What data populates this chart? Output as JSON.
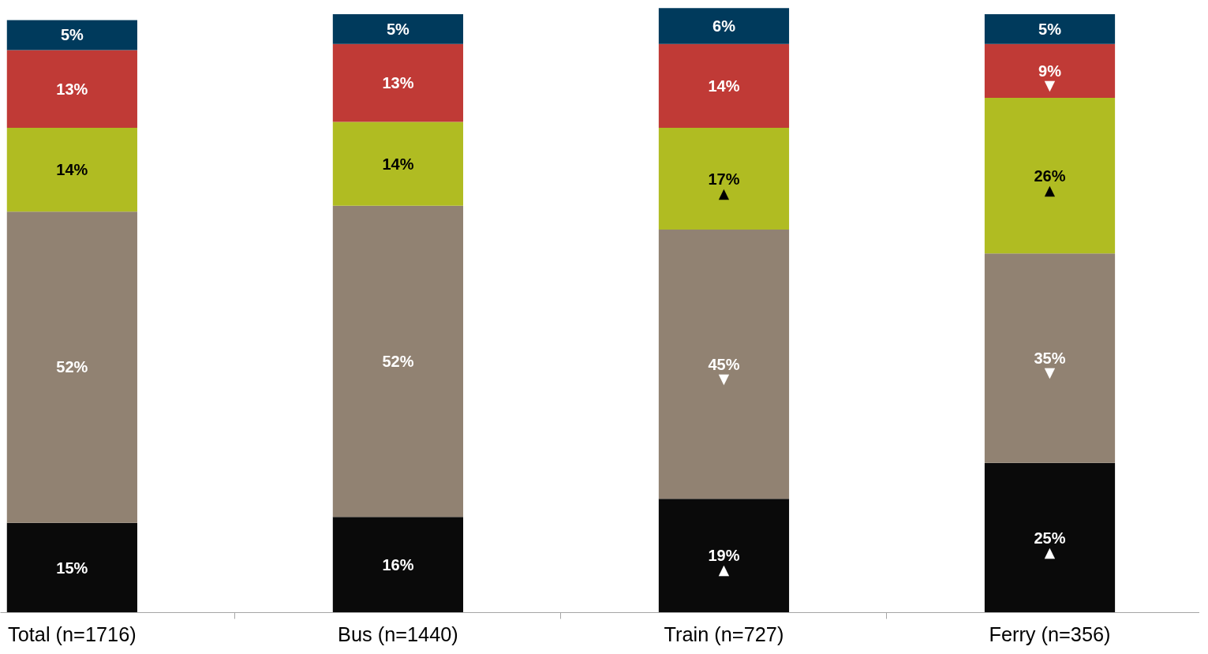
{
  "chart_data": {
    "type": "bar",
    "stacked": true,
    "tick_labels": "x",
    "categories": [
      "Total (n=1716)",
      "Bus (n=1440)",
      "Train (n=727)",
      "Ferry (n=356)"
    ],
    "series": [
      {
        "color": "#0a0a0a",
        "values": [
          15,
          16,
          19,
          25
        ],
        "value_labels": [
          "15%",
          "16%",
          "19%\n▲",
          "25%\n▲"
        ]
      },
      {
        "color": "#918272",
        "values": [
          52,
          52,
          45,
          35
        ],
        "value_labels": [
          "52%",
          "52%",
          "45%\n▼",
          "35%\n▼"
        ]
      },
      {
        "color": "#b0bc22",
        "values": [
          14,
          14,
          17,
          26
        ],
        "value_labels": [
          "14%",
          "14%",
          "17%\n▲",
          "26%\n▲"
        ]
      },
      {
        "color": "#c03a36",
        "values": [
          13,
          13,
          14,
          9
        ],
        "value_labels": [
          "13%",
          "13%",
          "14%",
          "9%\n▼"
        ]
      },
      {
        "color": "#003a5c",
        "values": [
          5,
          5,
          6,
          5
        ],
        "value_labels": [
          "5%",
          "5%",
          "6%",
          "5%"
        ]
      }
    ]
  }
}
